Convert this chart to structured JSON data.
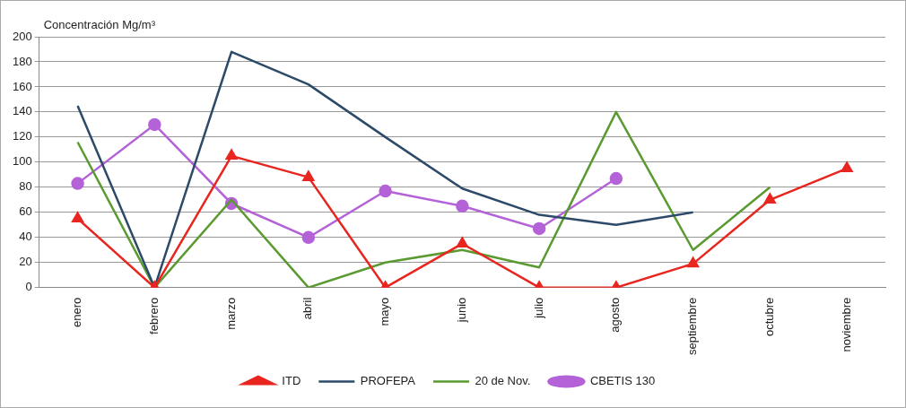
{
  "chart_data": {
    "type": "line",
    "ylabel": "Concentración Mg/m³",
    "categories": [
      "enero",
      "febrero",
      "marzo",
      "abril",
      "mayo",
      "junio",
      "julio",
      "agosto",
      "septiembre",
      "octubre",
      "noviembre"
    ],
    "series": [
      {
        "name": "ITD",
        "color": "#e8261f",
        "marker": "triangle",
        "values": [
          55,
          0,
          105,
          88,
          0,
          35,
          0,
          0,
          19,
          70,
          95
        ]
      },
      {
        "name": "PROFEPA",
        "color": "#2d4a68",
        "marker": "none",
        "values": [
          145,
          0,
          188,
          162,
          120,
          79,
          58,
          50,
          60,
          null,
          null
        ]
      },
      {
        "name": "20 de Nov.",
        "color": "#5a9a30",
        "marker": "none",
        "values": [
          116,
          0,
          70,
          0,
          20,
          30,
          16,
          140,
          30,
          80,
          null
        ]
      },
      {
        "name": "CBETIS 130",
        "color": "#b462d8",
        "marker": "circle",
        "values": [
          83,
          130,
          67,
          40,
          77,
          65,
          47,
          87,
          null,
          null,
          null
        ]
      }
    ],
    "ylim": [
      0,
      200
    ],
    "yticks": [
      0,
      20,
      40,
      60,
      80,
      100,
      120,
      140,
      160,
      180,
      200
    ],
    "grid": "y",
    "legend": "bottom"
  }
}
